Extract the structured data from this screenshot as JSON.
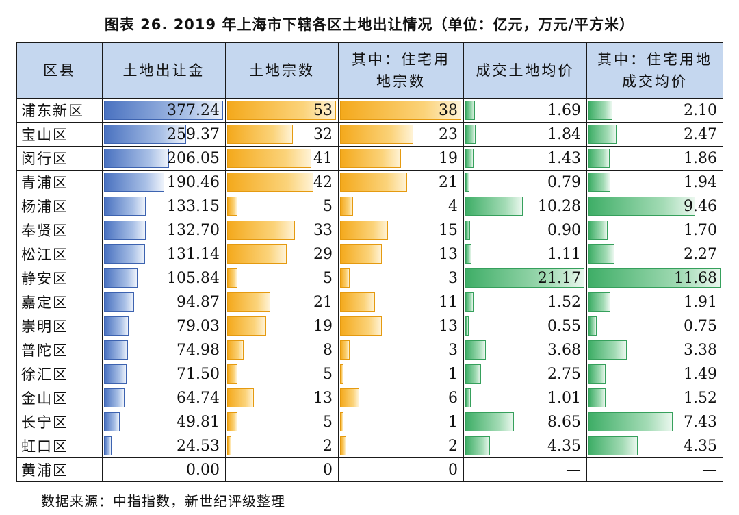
{
  "title": "图表 26. 2019 年上海市下辖各区土地出让情况（单位：亿元，万元/平方米）",
  "headers": [
    [
      "区县"
    ],
    [
      "土地出让金"
    ],
    [
      "土地宗数"
    ],
    [
      "其中：住宅用",
      "地宗数"
    ],
    [
      "成交土地均价"
    ],
    [
      "其中：住宅用地",
      "成交均价"
    ]
  ],
  "colors": {
    "header_bg": "#c5d7ef",
    "blue": "#4a72c0",
    "orange": "#f4a91c",
    "green": "#3fae67"
  },
  "max": {
    "proceeds": 377.24,
    "parcels": 53,
    "res_parcels": 38,
    "avg_price": 21.17,
    "res_avg_price": 11.68
  },
  "rows": [
    {
      "district": "浦东新区",
      "proceeds": "377.24",
      "parcels": "53",
      "res_parcels": "38",
      "avg_price": "1.69",
      "res_avg_price": "2.10"
    },
    {
      "district": "宝山区",
      "proceeds": "259.37",
      "parcels": "32",
      "res_parcels": "23",
      "avg_price": "1.84",
      "res_avg_price": "2.47"
    },
    {
      "district": "闵行区",
      "proceeds": "206.05",
      "parcels": "41",
      "res_parcels": "19",
      "avg_price": "1.43",
      "res_avg_price": "1.86"
    },
    {
      "district": "青浦区",
      "proceeds": "190.46",
      "parcels": "42",
      "res_parcels": "21",
      "avg_price": "0.79",
      "res_avg_price": "1.94"
    },
    {
      "district": "杨浦区",
      "proceeds": "133.15",
      "parcels": "5",
      "res_parcels": "4",
      "avg_price": "10.28",
      "res_avg_price": "9.46"
    },
    {
      "district": "奉贤区",
      "proceeds": "132.70",
      "parcels": "33",
      "res_parcels": "15",
      "avg_price": "0.90",
      "res_avg_price": "1.70"
    },
    {
      "district": "松江区",
      "proceeds": "131.14",
      "parcels": "29",
      "res_parcels": "13",
      "avg_price": "1.11",
      "res_avg_price": "2.27"
    },
    {
      "district": "静安区",
      "proceeds": "105.84",
      "parcels": "5",
      "res_parcels": "3",
      "avg_price": "21.17",
      "res_avg_price": "11.68"
    },
    {
      "district": "嘉定区",
      "proceeds": "94.87",
      "parcels": "21",
      "res_parcels": "11",
      "avg_price": "1.52",
      "res_avg_price": "1.91"
    },
    {
      "district": "崇明区",
      "proceeds": "79.03",
      "parcels": "19",
      "res_parcels": "13",
      "avg_price": "0.55",
      "res_avg_price": "0.75"
    },
    {
      "district": "普陀区",
      "proceeds": "74.98",
      "parcels": "8",
      "res_parcels": "3",
      "avg_price": "3.68",
      "res_avg_price": "3.38"
    },
    {
      "district": "徐汇区",
      "proceeds": "71.50",
      "parcels": "5",
      "res_parcels": "1",
      "avg_price": "2.75",
      "res_avg_price": "1.49"
    },
    {
      "district": "金山区",
      "proceeds": "64.74",
      "parcels": "13",
      "res_parcels": "6",
      "avg_price": "1.01",
      "res_avg_price": "1.52"
    },
    {
      "district": "长宁区",
      "proceeds": "49.81",
      "parcels": "5",
      "res_parcels": "1",
      "avg_price": "8.65",
      "res_avg_price": "7.43"
    },
    {
      "district": "虹口区",
      "proceeds": "24.53",
      "parcels": "2",
      "res_parcels": "2",
      "avg_price": "4.35",
      "res_avg_price": "4.35"
    },
    {
      "district": "黄浦区",
      "proceeds": "0.00",
      "parcels": "0",
      "res_parcels": "0",
      "avg_price": "—",
      "res_avg_price": "—"
    }
  ],
  "source": "数据来源：中指指数，新世纪评级整理"
}
